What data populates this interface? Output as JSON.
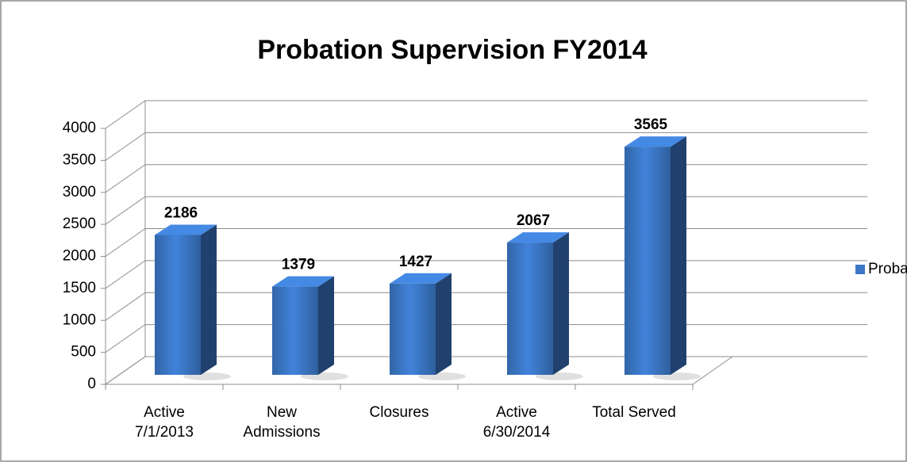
{
  "chart_data": {
    "type": "bar3d",
    "title": "Probation Supervision FY2014",
    "categories": [
      "Active\n7/1/2013",
      "New\nAdmissions",
      "Closures",
      "Active\n6/30/2014",
      "Total Served"
    ],
    "series": [
      {
        "name": "Probation",
        "color": "#3b77c6",
        "values": [
          2186,
          1379,
          1427,
          2067,
          3565
        ]
      }
    ],
    "ylim": [
      0,
      4000
    ],
    "yticks": [
      0,
      500,
      1000,
      1500,
      2000,
      2500,
      3000,
      3500,
      4000
    ],
    "grid": true,
    "legend": "right"
  }
}
